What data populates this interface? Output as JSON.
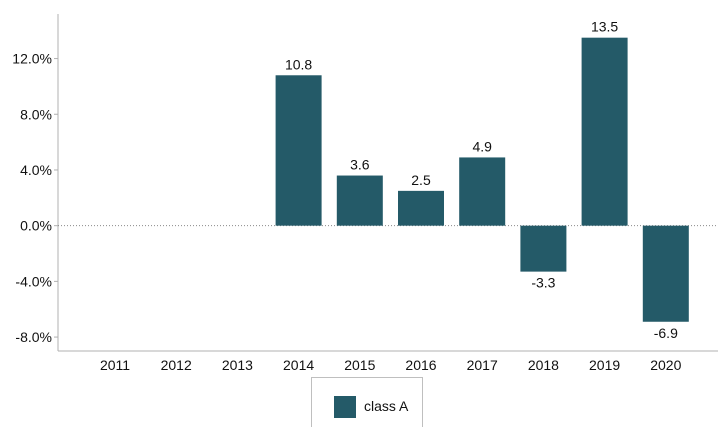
{
  "chart_data": {
    "type": "bar",
    "categories": [
      "2011",
      "2012",
      "2013",
      "2014",
      "2015",
      "2016",
      "2017",
      "2018",
      "2019",
      "2020"
    ],
    "series": [
      {
        "name": "class A",
        "values": [
          null,
          null,
          null,
          10.8,
          3.6,
          2.5,
          4.9,
          -3.3,
          13.5,
          -6.9
        ],
        "data_labels": [
          "",
          "",
          "",
          "10.8",
          "3.6",
          "2.5",
          "4.9",
          "-3.3",
          "13.5",
          "-6.9"
        ],
        "color": "#245a68"
      }
    ],
    "y_ticks": [
      {
        "value": 12,
        "label": "12.0%"
      },
      {
        "value": 8,
        "label": "8.0%"
      },
      {
        "value": 4,
        "label": "4.0%"
      },
      {
        "value": 0,
        "label": "0.0%"
      },
      {
        "value": -4,
        "label": "-4.0%"
      },
      {
        "value": -8,
        "label": "-8.0%"
      }
    ],
    "ylim": [
      -9,
      15.2
    ],
    "title": "",
    "xlabel": "",
    "ylabel": "",
    "grid": false,
    "zero_line": "dotted",
    "legend_position": "bottom-center"
  }
}
